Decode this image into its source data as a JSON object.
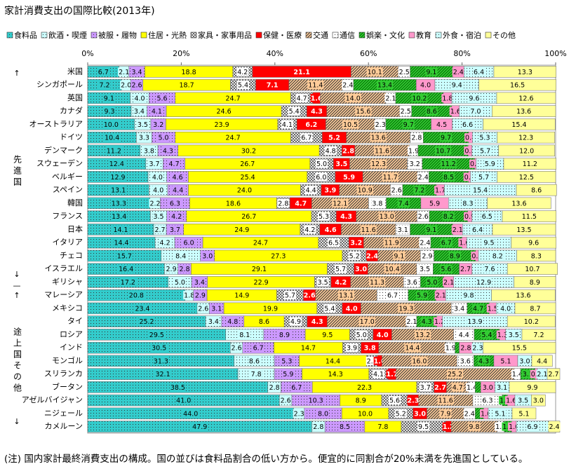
{
  "chart_data": {
    "type": "stacked-bar-horizontal",
    "title": "家計消費支出の国際比較(2013年)",
    "categories": [
      "米国",
      "シンガポール",
      "英国",
      "カナダ",
      "オーストラリア",
      "ドイツ",
      "デンマーク",
      "スウェーデン",
      "ベルギー",
      "スペイン",
      "韓国",
      "フランス",
      "日本",
      "イタリア",
      "チェコ",
      "イスラエル",
      "ギリシャ",
      "マレーシア",
      "メキシコ",
      "タイ",
      "ロシア",
      "インド",
      "モンゴル",
      "スリランカ",
      "ブータン",
      "アゼルバイジャン",
      "ニジェール",
      "カメルーン"
    ],
    "xlim": [
      0,
      100
    ],
    "xticks": [
      {
        "value": 0,
        "label": "0%"
      },
      {
        "value": 20,
        "label": "20%"
      },
      {
        "value": 40,
        "label": "40%"
      },
      {
        "value": 60,
        "label": "60%"
      },
      {
        "value": 80,
        "label": "80%"
      },
      {
        "value": 100,
        "label": "100%"
      }
    ],
    "legend": "top",
    "series": [
      {
        "name": "食料品",
        "color": "#33cccc",
        "values": [
          6.7,
          7.2,
          9.1,
          9.3,
          10.0,
          10.4,
          11.2,
          12.4,
          12.9,
          13.1,
          13.3,
          13.4,
          14.1,
          14.4,
          15.7,
          16.4,
          17.2,
          20.8,
          23.4,
          25.2,
          29.5,
          30.5,
          31.3,
          32.1,
          38.5,
          41.0,
          44.0,
          47.9
        ],
        "value_labels": [
          "6.7",
          "7.2",
          "9.1",
          "9.3",
          "10.0",
          "10.4",
          "11.2",
          "12.4",
          "12.9",
          "13.1",
          "13.3",
          "13.4",
          "14.1",
          "14.4",
          "15.7",
          "16.4",
          "17.2",
          "20.8",
          "23.4",
          "25.2",
          "29.5",
          "30.5",
          "31.3",
          "32.1",
          "38.5",
          "41.0",
          "44.0",
          "47.9"
        ]
      },
      {
        "name": "飲酒・喫煙",
        "color": "#ccffff",
        "values": [
          2.1,
          2.0,
          4.0,
          3.4,
          3.5,
          3.3,
          3.8,
          3.7,
          4.0,
          4.0,
          2.2,
          3.5,
          2.7,
          4.2,
          8.4,
          2.9,
          5.0,
          1.8,
          2.6,
          3.4,
          8.1,
          2.6,
          8.6,
          7.8,
          2.8,
          2.6,
          2.3,
          2.8
        ],
        "value_labels": [
          "2.1",
          "2.0",
          "4.0",
          "3.4",
          "3.5",
          "3.3",
          "3.8",
          "3.7",
          "4.0",
          "4.0",
          "2.2",
          "3.5",
          "2.7",
          "4.2",
          "8.4",
          "2.9",
          "5.0",
          "1.8",
          "2.6",
          "3.4",
          "8.1",
          "2.6",
          "8.6",
          "7.8",
          "2.8",
          "2.6",
          "2.3",
          "2.8"
        ]
      },
      {
        "name": "被服・履物",
        "color": "#cc99ff",
        "values": [
          3.4,
          2.6,
          5.6,
          4.1,
          3.2,
          5.0,
          4.3,
          4.7,
          4.6,
          4.4,
          6.3,
          4.2,
          3.7,
          6.0,
          3.0,
          2.8,
          3.4,
          2.9,
          3.1,
          4.8,
          8.9,
          6.7,
          5.3,
          5.9,
          6.7,
          10.3,
          8.0,
          8.5
        ],
        "value_labels": [
          "3.4",
          "2.6",
          "5.6",
          "4.1",
          "3.2",
          "5.0",
          "4.3",
          "4.7",
          "4.6",
          "4.4",
          "6.3",
          "4.2",
          "3.7",
          "6.0",
          "3.0",
          "2.8",
          "3.4",
          "2.9",
          "3.1",
          "4.8",
          "8.9",
          "6.7",
          "5.3",
          "5.9",
          "6.7",
          "10.3",
          "8.0",
          "8.5"
        ]
      },
      {
        "name": "住居・光熱",
        "color": "#ffff00",
        "values": [
          18.8,
          18.7,
          24.7,
          24.6,
          23.9,
          24.7,
          30.2,
          26.7,
          25.4,
          24.0,
          18.6,
          26.7,
          24.9,
          24.7,
          27.3,
          29.1,
          22.9,
          14.9,
          19.9,
          8.6,
          9.5,
          14.7,
          14.4,
          14.3,
          22.3,
          8.9,
          10.0,
          7.8
        ],
        "value_labels": [
          "18.8",
          "18.7",
          "24.7",
          "24.6",
          "23.9",
          "24.7",
          "30.2",
          "26.7",
          "25.4",
          "24.0",
          "18.6",
          "26.7",
          "24.9",
          "24.7",
          "27.3",
          "29.1",
          "22.9",
          "14.9",
          "19.9",
          "8.6",
          "9.5",
          "14.7",
          "14.4",
          "14.3",
          "22.3",
          "8.9",
          "10.0",
          "7.8"
        ]
      },
      {
        "name": "家具・家事用品",
        "color": "#ffffff",
        "values": [
          4.2,
          5.4,
          4.7,
          5.4,
          4.1,
          6.7,
          4.8,
          5.0,
          6.0,
          4.4,
          2.8,
          5.3,
          4.2,
          6.5,
          5.2,
          5.7,
          3.5,
          5.7,
          5.4,
          4.9,
          5.0,
          3.9,
          2.3,
          4.1,
          3.7,
          5.6,
          5.2,
          9.5
        ],
        "value_labels": [
          "4.2",
          "5.4",
          "4.7",
          "5.4",
          "4.1",
          "6.7",
          "4.8",
          "5.0",
          "6.0",
          "4.4",
          "2.8",
          "5.3",
          "4.2",
          "6.5",
          "5.2",
          "5.7",
          "3.5",
          "5.7",
          "5.4",
          "4.9",
          "5.0",
          "3.9",
          "2.3",
          "4.1",
          "3.7",
          "5.6",
          "5.2",
          "9.5"
        ]
      },
      {
        "name": "保健・医療",
        "color": "#ff0000",
        "values": [
          21.1,
          7.1,
          1.6,
          4.3,
          6.2,
          5.2,
          2.8,
          3.5,
          5.9,
          3.9,
          4.7,
          4.3,
          4.6,
          3.2,
          2.4,
          3.0,
          4.2,
          2.6,
          4.0,
          4.3,
          4.0,
          3.8,
          1.0,
          1.7,
          2.7,
          2.3,
          3.0,
          1.2
        ],
        "value_labels": [
          "21.1",
          "7.1",
          "1.6",
          "4.3",
          "6.2",
          "5.2",
          "2.8",
          "3.5",
          "5.9",
          "3.9",
          "4.7",
          "4.3",
          "4.6",
          "3.2",
          "2.4",
          "3.0",
          "4.2",
          "2.6",
          "4.0",
          "4.3",
          "4.0",
          "3.8",
          "1.0",
          "1.7",
          "2.7",
          "2.3",
          "3.0",
          "1.2"
        ]
      },
      {
        "name": "交通",
        "color": "#ffcc99",
        "values": [
          10.1,
          11.4,
          14.0,
          15.6,
          10.5,
          13.6,
          11.6,
          12.3,
          11.7,
          10.9,
          12.1,
          13.0,
          11.6,
          11.9,
          9.1,
          10.4,
          11.3,
          13.1,
          19.3,
          17.0,
          13.2,
          14.4,
          16.0,
          25.2,
          4.7,
          11.6,
          7.9,
          9.8
        ],
        "value_labels": [
          "10.1",
          "11.4",
          "14.0",
          "15.6",
          "10.5",
          "13.6",
          "11.6",
          "12.3",
          "11.7",
          "10.9",
          "12.1",
          "13.0",
          "11.6",
          "11.9",
          "9.1",
          "10.4",
          "11.3",
          "13.1",
          "19.3",
          "17.0",
          "13.2",
          "14.4",
          "16.0",
          "25.2",
          "4.7",
          "11.6",
          "7.9",
          "9.8"
        ]
      },
      {
        "name": "通信",
        "color": "#ffffff",
        "values": [
          2.5,
          2.4,
          2.1,
          2.5,
          2.3,
          2.8,
          1.9,
          3.2,
          2.4,
          2.6,
          3.8,
          2.6,
          3.1,
          2.4,
          2.9,
          3.5,
          3.6,
          6.7,
          3.4,
          2.1,
          4.4,
          1.9,
          3.6,
          1.4,
          1.4,
          6.3,
          2.4,
          1.5
        ],
        "value_labels": [
          "2.5",
          "2.4",
          "2.1",
          "2.5",
          "2.3",
          "2.8",
          "1.9",
          "3.2",
          "2.4",
          "2.6",
          "3.8",
          "2.6",
          "3.1",
          "2.4",
          "2.9",
          "3.5",
          "3.6",
          "6.7",
          "3.4",
          "2.1",
          "4.4",
          "1.9",
          "3.6",
          "1.4",
          "1.4",
          "6.3",
          "2.4",
          "1.5"
        ]
      },
      {
        "name": "娯楽・文化",
        "color": "#33cc33",
        "values": [
          9.1,
          13.4,
          10.2,
          8.6,
          9.7,
          9.7,
          10.7,
          11.2,
          8.5,
          7.2,
          7.4,
          8.2,
          9.1,
          6.7,
          8.9,
          5.6,
          5.0,
          5.9,
          4.7,
          4.3,
          5.4,
          0.9,
          4.3,
          3.1,
          1.2,
          1.1,
          1.8,
          1.6
        ],
        "value_labels": [
          "9.1",
          "13.4",
          "10.2",
          "8.6",
          "9.7",
          "9.7",
          "10.7",
          "11.2",
          "8.5",
          "7.2",
          "7.4",
          "8.2",
          "9.1",
          "6.7",
          "8.9",
          "5.6",
          "5.0",
          "5.9",
          "4.7",
          "4.3",
          "5.4",
          null,
          "4.3",
          "3.1",
          null,
          "1.1",
          null,
          "1.6"
        ]
      },
      {
        "name": "教育",
        "color": "#ff99cc",
        "values": [
          2.4,
          4.0,
          1.8,
          1.6,
          4.5,
          0.8,
          0.8,
          0.3,
          0.4,
          1.7,
          5.9,
          0.9,
          2.1,
          1.0,
          0.6,
          2.7,
          2.1,
          2.1,
          1.5,
          1.2,
          1.3,
          2.8,
          5.1,
          0.5,
          3.0,
          1.6,
          1.0,
          1.0
        ],
        "value_labels": [
          "2.4",
          "4.0",
          "1.8",
          "1.6",
          "4.5",
          "0.8",
          "0.8",
          "0.3",
          "0.4",
          "1.7",
          "5.9",
          "0.9",
          "2.1",
          "1.0",
          "0.6",
          "2.7",
          "2.1",
          "2.1",
          "1.5",
          "1.2",
          "1.3",
          "2.8",
          "5.1",
          "0.5",
          "3.0",
          "1.6",
          "1.0",
          "1.0"
        ]
      },
      {
        "name": "外食・宿泊",
        "color": "#ccffff",
        "values": [
          6.4,
          9.4,
          9.6,
          7.0,
          6.6,
          5.3,
          5.7,
          5.9,
          5.7,
          15.4,
          8.3,
          6.5,
          6.4,
          9.5,
          8.2,
          7.6,
          12.9,
          9.8,
          4.0,
          13.9,
          3.5,
          2.3,
          3.0,
          2.1,
          3.1,
          3.5,
          5.1,
          6.9
        ],
        "value_labels": [
          "6.4",
          "9.4",
          "9.6",
          "7.0",
          "6.6",
          "5.3",
          "5.7",
          "5.9",
          "5.7",
          "15.4",
          "8.3",
          "6.5",
          "6.4",
          "9.5",
          "8.2",
          "7.6",
          "12.9",
          "9.8",
          "4.0",
          "13.9",
          "3.5",
          "2.3",
          "3.0",
          "2.1",
          "3.1",
          "3.5",
          "5.1",
          "6.9"
        ]
      },
      {
        "name": "その他",
        "color": "#ffff99",
        "values": [
          13.3,
          16.5,
          12.6,
          13.6,
          15.4,
          12.3,
          12.0,
          11.2,
          12.5,
          8.6,
          13.6,
          11.5,
          13.5,
          9.6,
          8.3,
          10.7,
          8.9,
          13.6,
          8.7,
          10.2,
          7.2,
          15.5,
          4.4,
          2.7,
          9.9,
          3.0,
          5.1,
          2.4
        ],
        "value_labels": [
          "13.3",
          "16.5",
          "12.6",
          "13.6",
          "15.4",
          "12.3",
          "12.0",
          "11.2",
          "12.5",
          "8.6",
          "13.6",
          "11.5",
          "13.5",
          "9.6",
          "8.3",
          "10.7",
          "8.9",
          "13.6",
          "8.7",
          "10.2",
          "7.2",
          "15.5",
          "4.4",
          "2.7",
          "9.9",
          "3.0",
          "5.1",
          "2.4"
        ]
      }
    ],
    "side_labels": [
      "↑",
      "先進国",
      "↓",
      "—",
      "↑",
      "途上国その他",
      "↓"
    ],
    "note": "(注) 国内家計最終消費支出の構成。国の並びは食料品割合の低い方から。便宜的に同割合が20%未満を先進国としている。"
  }
}
